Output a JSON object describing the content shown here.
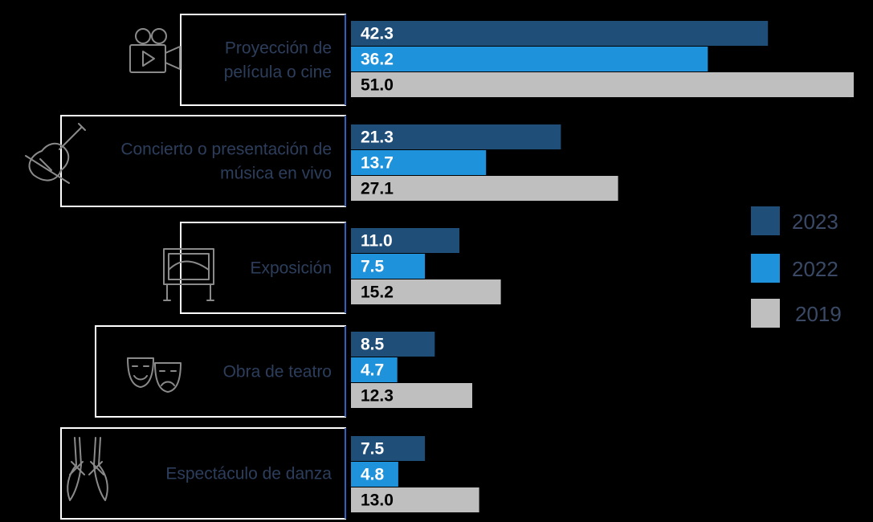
{
  "chart_data": {
    "type": "bar",
    "orientation": "horizontal",
    "categories": [
      [
        "Proyección de",
        "película o cine"
      ],
      [
        "Concierto o presentación de",
        "música en vivo"
      ],
      [
        "Exposición"
      ],
      [
        "Obra de teatro"
      ],
      [
        "Espectáculo de danza"
      ]
    ],
    "category_icons": [
      "film-camera-icon",
      "violin-icon",
      "exhibition-frame-icon",
      "theater-masks-icon",
      "ballet-shoes-icon"
    ],
    "series": [
      {
        "name": "2023",
        "color": "#1f4e79",
        "values": [
          "42.3",
          "21.3",
          "11.0",
          "8.5",
          "7.5"
        ]
      },
      {
        "name": "2022",
        "color": "#1f92dc",
        "values": [
          "36.2",
          "13.7",
          "7.5",
          "4.7",
          "4.8"
        ]
      },
      {
        "name": "2019",
        "color": "#bfbfbf",
        "values": [
          "51.0",
          "27.1",
          "15.2",
          "12.3",
          "13.0"
        ]
      }
    ],
    "xlim": [
      0,
      51.0
    ],
    "legend_position": "right",
    "label_colors": {
      "on_dark": "#ffffff",
      "on_light": "#000000"
    }
  }
}
